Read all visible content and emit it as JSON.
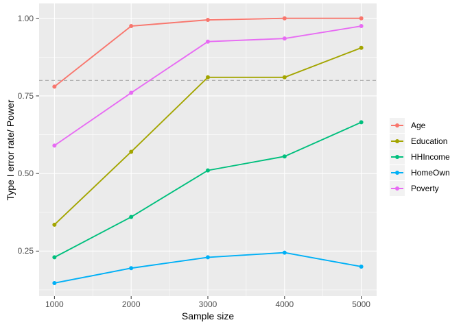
{
  "figure": {
    "background": "#FFFFFF",
    "panel_background": "#EBEBEB",
    "grid_color": "#FFFFFF",
    "tick_mark_color": "#333333",
    "tick_label_color": "#4D4D4D",
    "axis_title_color": "#000000",
    "legend_key_background": "#F2F2F2"
  },
  "chart_data": {
    "type": "line",
    "title": "",
    "xlabel": "Sample size",
    "ylabel": "Type I error rate/ Power",
    "x": [
      1000,
      2000,
      3000,
      4000,
      5000
    ],
    "x_tick_labels": [
      "1000",
      "2000",
      "3000",
      "4000",
      "5000"
    ],
    "y_ticks": [
      0.25,
      0.5,
      0.75,
      1.0
    ],
    "y_tick_labels": [
      "0.25",
      "0.50",
      "0.75",
      "1.00"
    ],
    "xlim": [
      800,
      5200
    ],
    "ylim": [
      0.105,
      1.048
    ],
    "grid": "white major and minor gridlines on grey panel",
    "legend_position": "right",
    "reference_line": {
      "y": 0.8,
      "linetype": "dashed",
      "color": "#A9A9A9"
    },
    "series": [
      {
        "name": "Age",
        "color": "#F8766D",
        "values": [
          0.78,
          0.975,
          0.995,
          1.0,
          1.0
        ]
      },
      {
        "name": "Education",
        "color": "#A3A500",
        "values": [
          0.335,
          0.57,
          0.81,
          0.81,
          0.905
        ]
      },
      {
        "name": "HHIncome",
        "color": "#00BF7D",
        "values": [
          0.23,
          0.36,
          0.51,
          0.555,
          0.665
        ]
      },
      {
        "name": "HomeOwn",
        "color": "#00B0F6",
        "values": [
          0.147,
          0.195,
          0.23,
          0.245,
          0.2
        ]
      },
      {
        "name": "Poverty",
        "color": "#E76BF3",
        "values": [
          0.59,
          0.76,
          0.925,
          0.935,
          0.975
        ]
      }
    ]
  }
}
